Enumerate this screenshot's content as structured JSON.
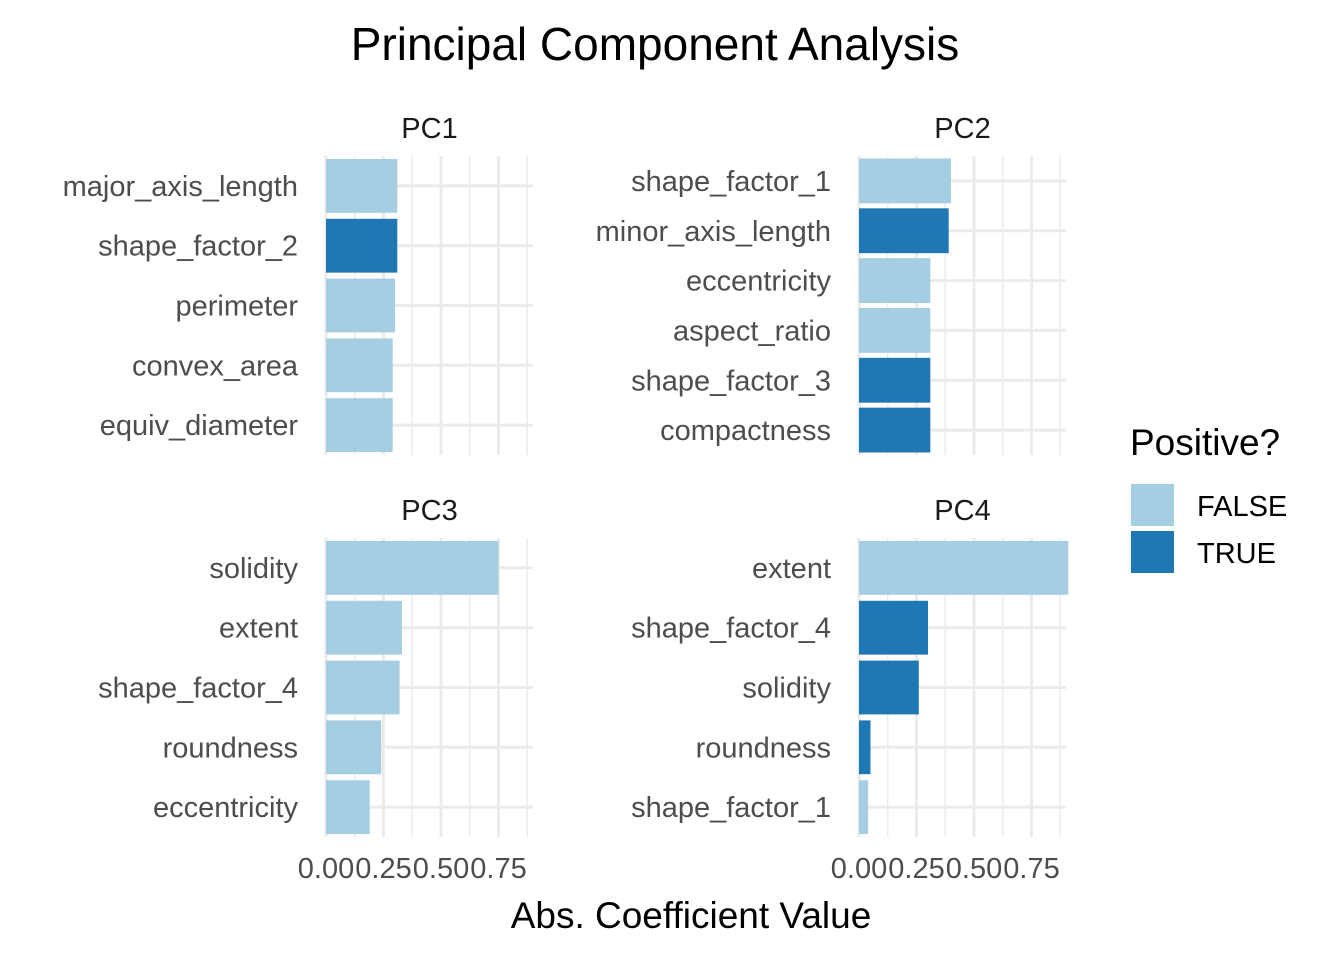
{
  "chart_data": {
    "type": "bar",
    "orientation": "horizontal",
    "title": "Principal Component Analysis",
    "xlabel": "Abs. Coefficient Value",
    "ylabel": "",
    "xlim": [
      0,
      0.9
    ],
    "x_ticks": [
      0.0,
      0.25,
      0.5,
      0.75
    ],
    "x_tick_labels": [
      "0.00",
      "0.25",
      "0.50",
      "0.75"
    ],
    "grid": true,
    "legend": {
      "title": "Positive?",
      "position": "right",
      "entries": [
        {
          "label": "FALSE",
          "color": "#a6cee3"
        },
        {
          "label": "TRUE",
          "color": "#1f78b4"
        }
      ]
    },
    "facets": [
      {
        "name": "PC1",
        "bars": [
          {
            "label": "major_axis_length",
            "value": 0.31,
            "positive": false
          },
          {
            "label": "shape_factor_2",
            "value": 0.31,
            "positive": true
          },
          {
            "label": "perimeter",
            "value": 0.3,
            "positive": false
          },
          {
            "label": "convex_area",
            "value": 0.29,
            "positive": false
          },
          {
            "label": "equiv_diameter",
            "value": 0.29,
            "positive": false
          }
        ]
      },
      {
        "name": "PC2",
        "bars": [
          {
            "label": "shape_factor_1",
            "value": 0.4,
            "positive": false
          },
          {
            "label": "minor_axis_length",
            "value": 0.39,
            "positive": true
          },
          {
            "label": "eccentricity",
            "value": 0.31,
            "positive": false
          },
          {
            "label": "aspect_ratio",
            "value": 0.31,
            "positive": false
          },
          {
            "label": "shape_factor_3",
            "value": 0.31,
            "positive": true
          },
          {
            "label": "compactness",
            "value": 0.31,
            "positive": true
          }
        ]
      },
      {
        "name": "PC3",
        "bars": [
          {
            "label": "solidity",
            "value": 0.75,
            "positive": false
          },
          {
            "label": "extent",
            "value": 0.33,
            "positive": false
          },
          {
            "label": "shape_factor_4",
            "value": 0.32,
            "positive": false
          },
          {
            "label": "roundness",
            "value": 0.24,
            "positive": false
          },
          {
            "label": "eccentricity",
            "value": 0.19,
            "positive": false
          }
        ]
      },
      {
        "name": "PC4",
        "bars": [
          {
            "label": "extent",
            "value": 0.91,
            "positive": false
          },
          {
            "label": "shape_factor_4",
            "value": 0.3,
            "positive": true
          },
          {
            "label": "solidity",
            "value": 0.26,
            "positive": true
          },
          {
            "label": "roundness",
            "value": 0.05,
            "positive": true
          },
          {
            "label": "shape_factor_1",
            "value": 0.04,
            "positive": false
          }
        ]
      }
    ]
  }
}
